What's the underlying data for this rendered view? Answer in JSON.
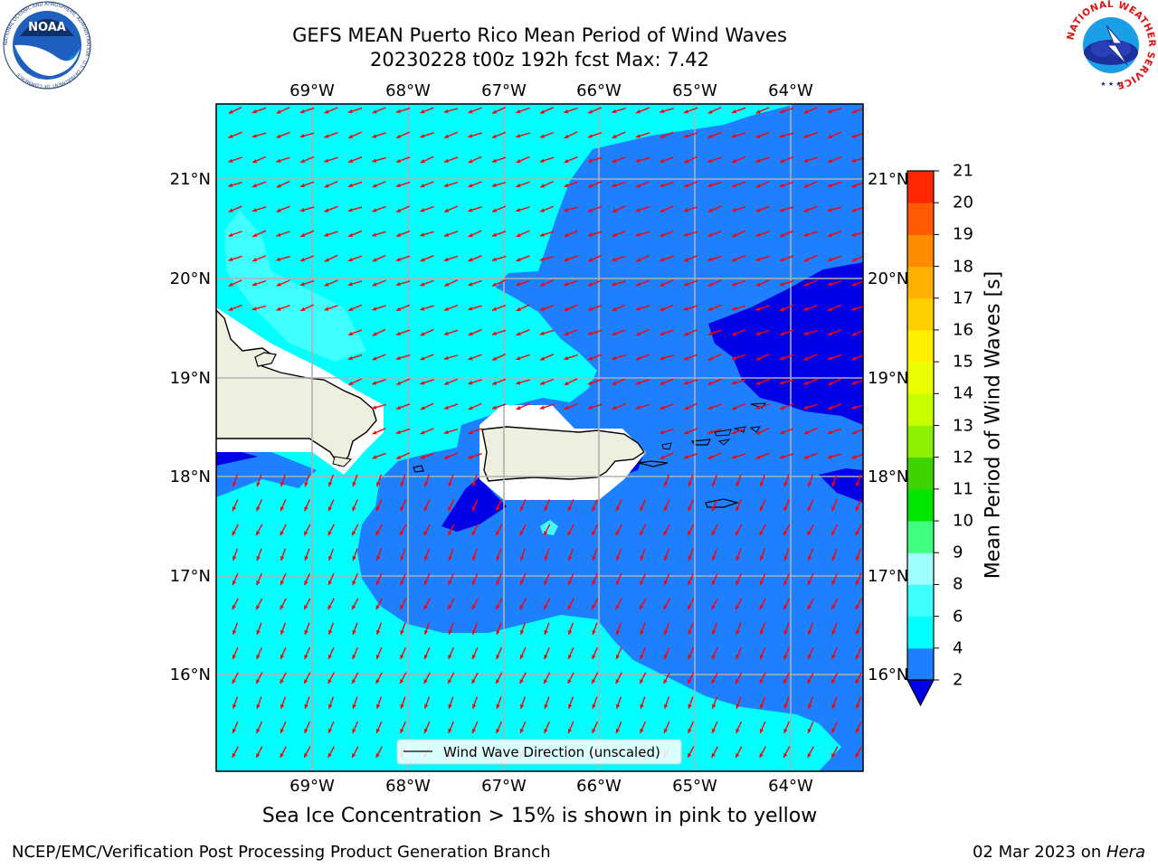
{
  "header": {
    "title_line1": "GEFS MEAN Puerto Rico Mean Period of Wind Waves",
    "title_line2": "20230228 t00z 192h fcst   Max: 7.42"
  },
  "logos": {
    "noaa_text": "NOAA",
    "noaa_ring": "NATIONAL OCEANIC AND ATMOSPHERIC ADMINISTRATION · U.S. DEPARTMENT OF COMMERCE",
    "nws_ring": "NATIONAL WEATHER SERVICE"
  },
  "map": {
    "lon_labels": [
      "69°W",
      "68°W",
      "67°W",
      "66°W",
      "65°W",
      "64°W"
    ],
    "lat_labels": [
      "21°N",
      "20°N",
      "19°N",
      "18°N",
      "17°N",
      "16°N"
    ],
    "legend_label": "Wind Wave Direction (unscaled)",
    "colors": {
      "ocean_cyan": "#00ffff",
      "ocean_blue": "#1e7fff",
      "ocean_deep": "#0000e6",
      "land": "#efefdf",
      "arrow": "#ff0000",
      "grid": "#b0b0b0"
    }
  },
  "colorbar": {
    "label": "Mean Period of Wind Waves [s]",
    "ticks": [
      "2",
      "4",
      "6",
      "8",
      "9",
      "10",
      "11",
      "12",
      "13",
      "14",
      "15",
      "16",
      "17",
      "18",
      "19",
      "20",
      "21"
    ],
    "colors": [
      "#1e7fff",
      "#00ffff",
      "#40ffff",
      "#a0ffff",
      "#40ff80",
      "#00e600",
      "#3cd300",
      "#8cf000",
      "#c8ff00",
      "#ebff00",
      "#fff000",
      "#ffd000",
      "#ffb000",
      "#ff8c00",
      "#ff5a00",
      "#ff2800",
      "#ff0000"
    ],
    "extend_color": "#0000e6"
  },
  "subtitle": "Sea Ice Concentration > 15% is shown in pink to yellow",
  "footer": {
    "left": "NCEP/EMC/Verification Post Processing Product Generation Branch",
    "right_prefix": "02 Mar 2023 on ",
    "right_host": "Hera"
  }
}
